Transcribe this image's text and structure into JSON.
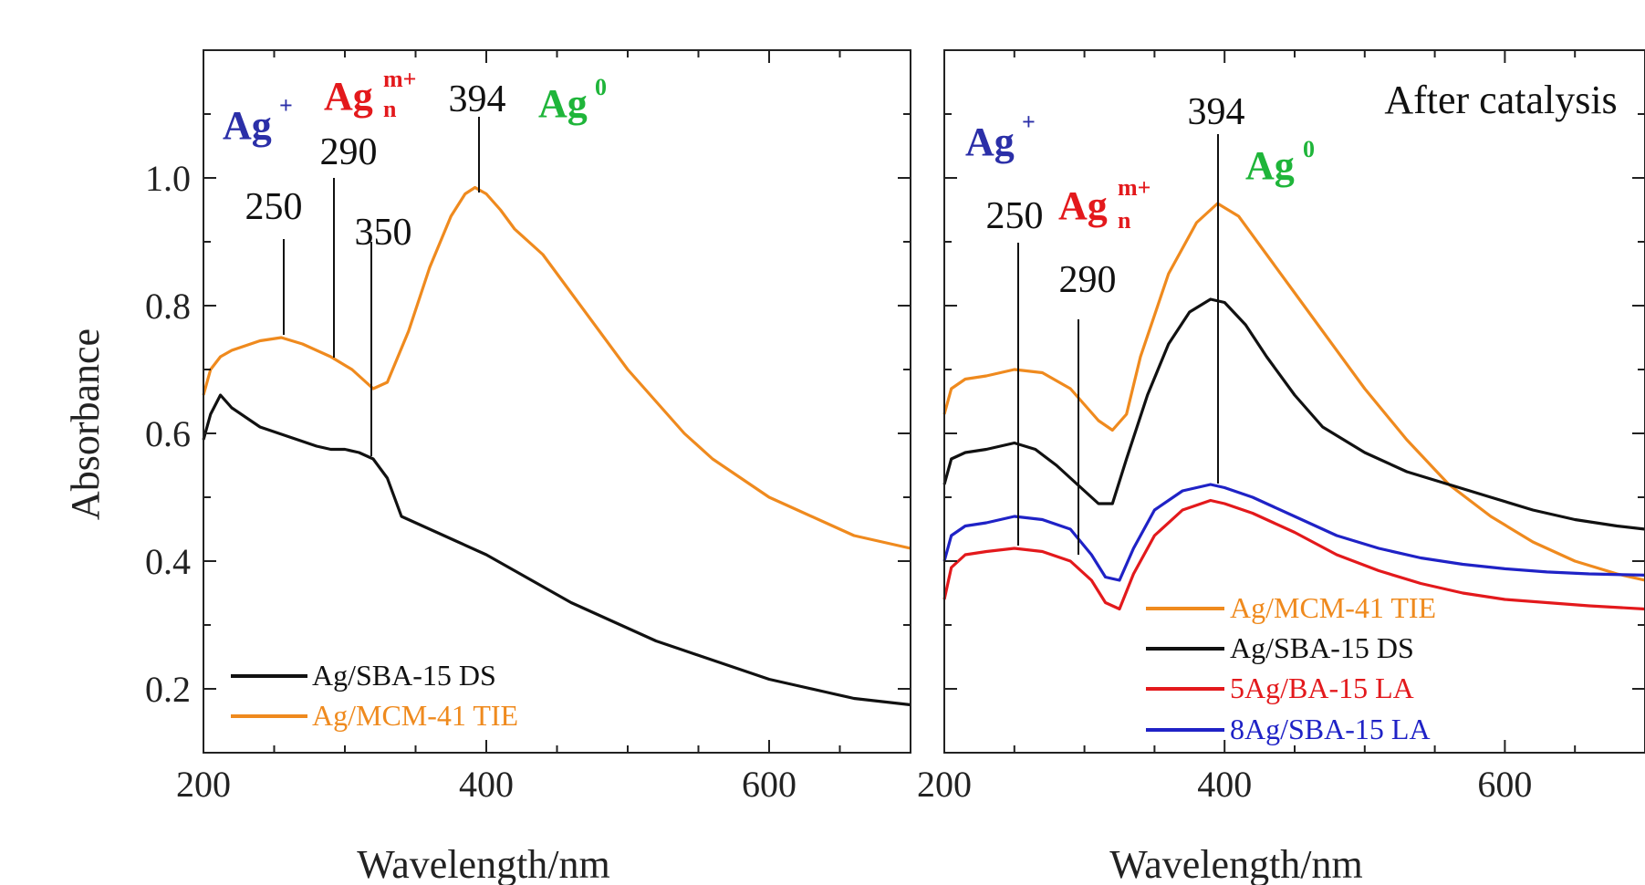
{
  "chart_data": [
    {
      "type": "line",
      "title": "",
      "xlabel": "Wavelength/nm",
      "ylabel": "Absorbance",
      "xlim": [
        200,
        700
      ],
      "ylim": [
        0.1,
        1.2
      ],
      "x_ticks": [
        200,
        400,
        600
      ],
      "y_ticks": [
        0.2,
        0.4,
        0.6,
        0.8,
        1.0
      ],
      "x_tick_labels": [
        "200",
        "400",
        "600"
      ],
      "y_tick_labels": [
        "0.2",
        "0.4",
        "0.6",
        "0.8",
        "1.0"
      ],
      "legend_position": "bottom-left",
      "series": [
        {
          "name": "Ag/SBA-15 DS",
          "color": "#111111",
          "x": [
            200,
            205,
            212,
            220,
            240,
            260,
            280,
            290,
            300,
            310,
            320,
            330,
            340,
            360,
            380,
            400,
            420,
            440,
            460,
            480,
            500,
            520,
            540,
            560,
            580,
            600,
            620,
            640,
            660,
            680,
            700
          ],
          "y": [
            0.59,
            0.63,
            0.66,
            0.64,
            0.61,
            0.595,
            0.58,
            0.575,
            0.575,
            0.57,
            0.56,
            0.53,
            0.47,
            0.45,
            0.43,
            0.41,
            0.385,
            0.36,
            0.335,
            0.315,
            0.295,
            0.275,
            0.26,
            0.245,
            0.23,
            0.215,
            0.205,
            0.195,
            0.185,
            0.18,
            0.175
          ]
        },
        {
          "name": "Ag/MCM-41 TIE",
          "color": "#ef8a1e",
          "x": [
            200,
            205,
            212,
            220,
            240,
            255,
            270,
            290,
            305,
            320,
            330,
            345,
            360,
            375,
            385,
            392,
            400,
            410,
            420,
            440,
            460,
            480,
            500,
            520,
            540,
            560,
            580,
            600,
            620,
            640,
            660,
            680,
            700
          ],
          "y": [
            0.66,
            0.7,
            0.72,
            0.73,
            0.745,
            0.75,
            0.74,
            0.72,
            0.7,
            0.67,
            0.68,
            0.76,
            0.86,
            0.94,
            0.975,
            0.985,
            0.975,
            0.95,
            0.92,
            0.88,
            0.82,
            0.76,
            0.7,
            0.65,
            0.6,
            0.56,
            0.53,
            0.5,
            0.48,
            0.46,
            0.44,
            0.43,
            0.42
          ]
        }
      ],
      "annotations": {
        "peaks": [
          "250",
          "290",
          "350",
          "394"
        ],
        "species": [
          "Ag",
          "Ag",
          "Ag"
        ],
        "species_superscripts": [
          "+",
          "m+",
          "0"
        ],
        "species_subscripts": [
          "",
          "n",
          ""
        ]
      }
    },
    {
      "type": "line",
      "title": "After catalysis",
      "xlabel": "Wavelength/nm",
      "ylabel": "",
      "xlim": [
        200,
        700
      ],
      "ylim": [
        0.1,
        1.2
      ],
      "x_ticks": [
        200,
        400,
        600
      ],
      "x_tick_labels": [
        "200",
        "400",
        "600"
      ],
      "legend_position": "bottom-center",
      "series": [
        {
          "name": "Ag/MCM-41 TIE",
          "color": "#ef8a1e",
          "x": [
            200,
            205,
            215,
            230,
            250,
            270,
            290,
            310,
            320,
            330,
            340,
            360,
            380,
            395,
            410,
            430,
            450,
            470,
            500,
            530,
            560,
            590,
            620,
            650,
            680,
            700
          ],
          "y": [
            0.63,
            0.67,
            0.685,
            0.69,
            0.7,
            0.695,
            0.67,
            0.62,
            0.605,
            0.63,
            0.72,
            0.85,
            0.93,
            0.96,
            0.94,
            0.88,
            0.82,
            0.76,
            0.67,
            0.59,
            0.52,
            0.47,
            0.43,
            0.4,
            0.38,
            0.37
          ]
        },
        {
          "name": "Ag/SBA-15 DS",
          "color": "#111111",
          "x": [
            200,
            205,
            215,
            230,
            250,
            265,
            280,
            295,
            310,
            320,
            330,
            345,
            360,
            375,
            390,
            400,
            415,
            430,
            450,
            470,
            500,
            530,
            560,
            590,
            620,
            650,
            680,
            700
          ],
          "y": [
            0.52,
            0.56,
            0.57,
            0.575,
            0.585,
            0.575,
            0.55,
            0.52,
            0.49,
            0.49,
            0.56,
            0.66,
            0.74,
            0.79,
            0.81,
            0.805,
            0.77,
            0.72,
            0.66,
            0.61,
            0.57,
            0.54,
            0.52,
            0.5,
            0.48,
            0.465,
            0.455,
            0.45
          ]
        },
        {
          "name": "5Ag/BA-15 LA",
          "color": "#e3191c",
          "x": [
            200,
            205,
            215,
            230,
            250,
            270,
            290,
            305,
            315,
            325,
            335,
            350,
            370,
            390,
            400,
            420,
            450,
            480,
            510,
            540,
            570,
            600,
            630,
            660,
            700
          ],
          "y": [
            0.34,
            0.39,
            0.41,
            0.415,
            0.42,
            0.415,
            0.4,
            0.37,
            0.335,
            0.325,
            0.38,
            0.44,
            0.48,
            0.495,
            0.49,
            0.475,
            0.445,
            0.41,
            0.385,
            0.365,
            0.35,
            0.34,
            0.335,
            0.33,
            0.325
          ]
        },
        {
          "name": "8Ag/SBA-15 LA",
          "color": "#1f22c6",
          "x": [
            200,
            205,
            215,
            230,
            250,
            270,
            290,
            305,
            315,
            325,
            335,
            350,
            370,
            390,
            400,
            420,
            450,
            480,
            510,
            540,
            570,
            600,
            630,
            660,
            700
          ],
          "y": [
            0.4,
            0.44,
            0.455,
            0.46,
            0.47,
            0.465,
            0.45,
            0.41,
            0.375,
            0.37,
            0.42,
            0.48,
            0.51,
            0.52,
            0.515,
            0.5,
            0.47,
            0.44,
            0.42,
            0.405,
            0.395,
            0.388,
            0.383,
            0.38,
            0.378
          ]
        }
      ],
      "annotations": {
        "peaks": [
          "250",
          "290",
          "394"
        ],
        "species": [
          "Ag",
          "Ag",
          "Ag"
        ],
        "species_superscripts": [
          "+",
          "m+",
          "0"
        ],
        "species_subscripts": [
          "",
          "n",
          ""
        ]
      }
    }
  ]
}
